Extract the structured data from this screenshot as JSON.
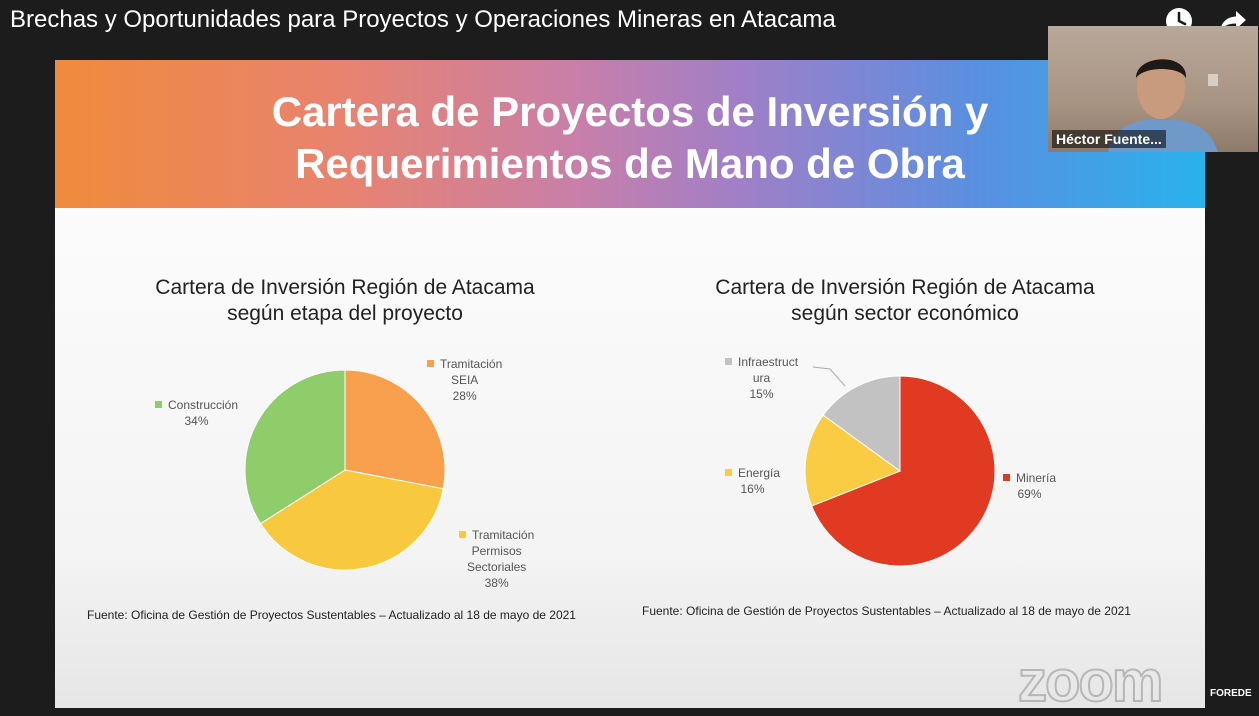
{
  "window": {
    "video_title": "Brechas y Oportunidades para Proyectos y Operaciones Mineras en Atacama"
  },
  "icons": {
    "watch_later": "clock-icon",
    "share": "share-icon"
  },
  "participant": {
    "name": "Héctor Fuente..."
  },
  "slide": {
    "title_line1": "Cartera de Proyectos de Inversión y",
    "title_line2": "Requerimientos de Mano de Obra",
    "gradient_colors": [
      "#f08a3c",
      "#c97fa8",
      "#9f7fc8",
      "#29b2ec"
    ]
  },
  "chart_data": [
    {
      "type": "pie",
      "title_line1": "Cartera de Inversión Región de Atacama",
      "title_line2": "según etapa del proyecto",
      "slices": [
        {
          "label_lines": [
            "Tramitación",
            "SEIA"
          ],
          "value": 28,
          "value_label": "28%",
          "color": "#f9a04e"
        },
        {
          "label_lines": [
            "Tramitación",
            "Permisos",
            "Sectoriales"
          ],
          "value": 38,
          "value_label": "38%",
          "color": "#f8c93e"
        },
        {
          "label_lines": [
            "Construcción"
          ],
          "value": 34,
          "value_label": "34%",
          "color": "#8fcc6a"
        }
      ],
      "source": "Fuente: Oficina  de Gestión de Proyectos Sustentables – Actualizado al 18 de mayo de 2021"
    },
    {
      "type": "pie",
      "title_line1": "Cartera de Inversión Región de Atacama",
      "title_line2": "según sector económico",
      "slices": [
        {
          "label_lines": [
            "Minería"
          ],
          "value": 69,
          "value_label": "69%",
          "color": "#e03a22"
        },
        {
          "label_lines": [
            "Energía"
          ],
          "value": 16,
          "value_label": "16%",
          "color": "#f9cc44"
        },
        {
          "label_lines": [
            "Infraestruct",
            "ura"
          ],
          "value": 15,
          "value_label": "15%",
          "color": "#c2c2c2"
        }
      ],
      "source": "Fuente: Oficina  de Gestión de Proyectos Sustentables – Actualizado al 18 de mayo de 2021"
    }
  ],
  "watermarks": {
    "zoom": "zoom",
    "corner": "FOREDE"
  }
}
